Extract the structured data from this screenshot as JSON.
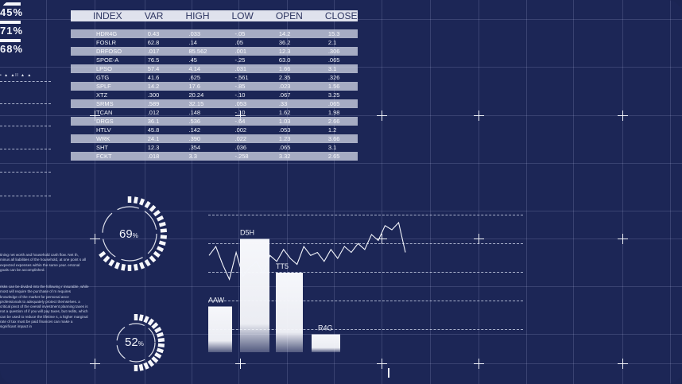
{
  "stats": [
    {
      "value": "45%"
    },
    {
      "value": "71%"
    },
    {
      "value": "68%"
    }
  ],
  "mini_label": "• ▲ ▲ll ▲ ▲",
  "table": {
    "columns": [
      "INDEX",
      "VAR",
      "HIGH",
      "LOW",
      "OPEN",
      "CLOSE"
    ],
    "rows": [
      [
        "HDR4G",
        "0.43",
        ".033",
        "-.05",
        "14.2",
        "15.3"
      ],
      [
        "FOSLR",
        "62.8",
        ".14",
        ".05",
        "36.2",
        "2.1"
      ],
      [
        "DRFOSO",
        ".017",
        "85.562",
        ".001",
        "12.3",
        ".306"
      ],
      [
        "SPOE-A",
        "76.5",
        ".45",
        "-.25",
        "63.0",
        ".065"
      ],
      [
        "LPSO",
        "57.4",
        "4.14",
        ".031",
        "1.66",
        "3.1"
      ],
      [
        "GTG",
        "41.6",
        ".625",
        "-.561",
        "2.35",
        ".326"
      ],
      [
        "SPLF",
        "14.2",
        "17.6",
        "-.85",
        ".023",
        "1.56"
      ],
      [
        "XTZ",
        ".300",
        "20.24",
        "-.10",
        ".067",
        "3.25"
      ],
      [
        "SRMS",
        ".589",
        "32.15",
        ".053",
        ".33",
        ".065"
      ],
      [
        "TCAN",
        ".012",
        ".148",
        "-.10",
        "1.62",
        "1.98"
      ],
      [
        "DRGS",
        "36.1",
        ".536",
        "-.64",
        "1.03",
        "2.66"
      ],
      [
        "HTLV",
        "45.8",
        ".142",
        ".002",
        ".053",
        "1.2"
      ],
      [
        "WRK",
        "24.1",
        ".390",
        ".022",
        "1.23",
        "3.66"
      ],
      [
        "SHT",
        "12.3",
        ".354",
        ".036",
        ".065",
        "3.1"
      ],
      [
        "FCKT",
        ".018",
        "3.3",
        "-.258",
        "3.32",
        "2.65"
      ]
    ]
  },
  "gauges": [
    {
      "value": 69,
      "label": "69",
      "unit": "%"
    },
    {
      "value": 52,
      "label": "52",
      "unit": "%"
    }
  ],
  "paragraphs": [
    "tining net worth and household cash flow. Net th, minus all liabilities of the household, at one point s all expected expenses within the same year. ersonal goals can be accomplished.",
    "risks can be divided into the following r insurable, while most will require the purchase of m requires knowledge of the market for personal ance professionals to adequately protect themselves. a critical pivot of the overall investment planning taxes is not a question of if you will pay taxes, but redits, which can be used to reduce the lifetime s, a higher marginal rate of tax must be paid finances can make a significant impact in"
  ],
  "chart_data": {
    "type": "bar",
    "categories": [
      "AAW",
      "D5H",
      "TT5",
      "R4G"
    ],
    "values": [
      46,
      114,
      80,
      18
    ],
    "line_series": [
      0.45,
      0.6,
      0.3,
      0.05,
      0.5,
      0.1,
      0.25,
      0.35,
      0.15,
      0.45,
      0.35,
      0.55,
      0.4,
      0.3,
      0.6,
      0.45,
      0.5,
      0.35,
      0.55,
      0.4,
      0.6,
      0.5,
      0.65,
      0.55,
      0.8,
      0.7,
      0.95,
      0.88,
      1.0,
      0.5
    ],
    "colors": {
      "background": "#1c2656",
      "bars": "#f5f6fa",
      "grid": "#d2dcff"
    }
  }
}
